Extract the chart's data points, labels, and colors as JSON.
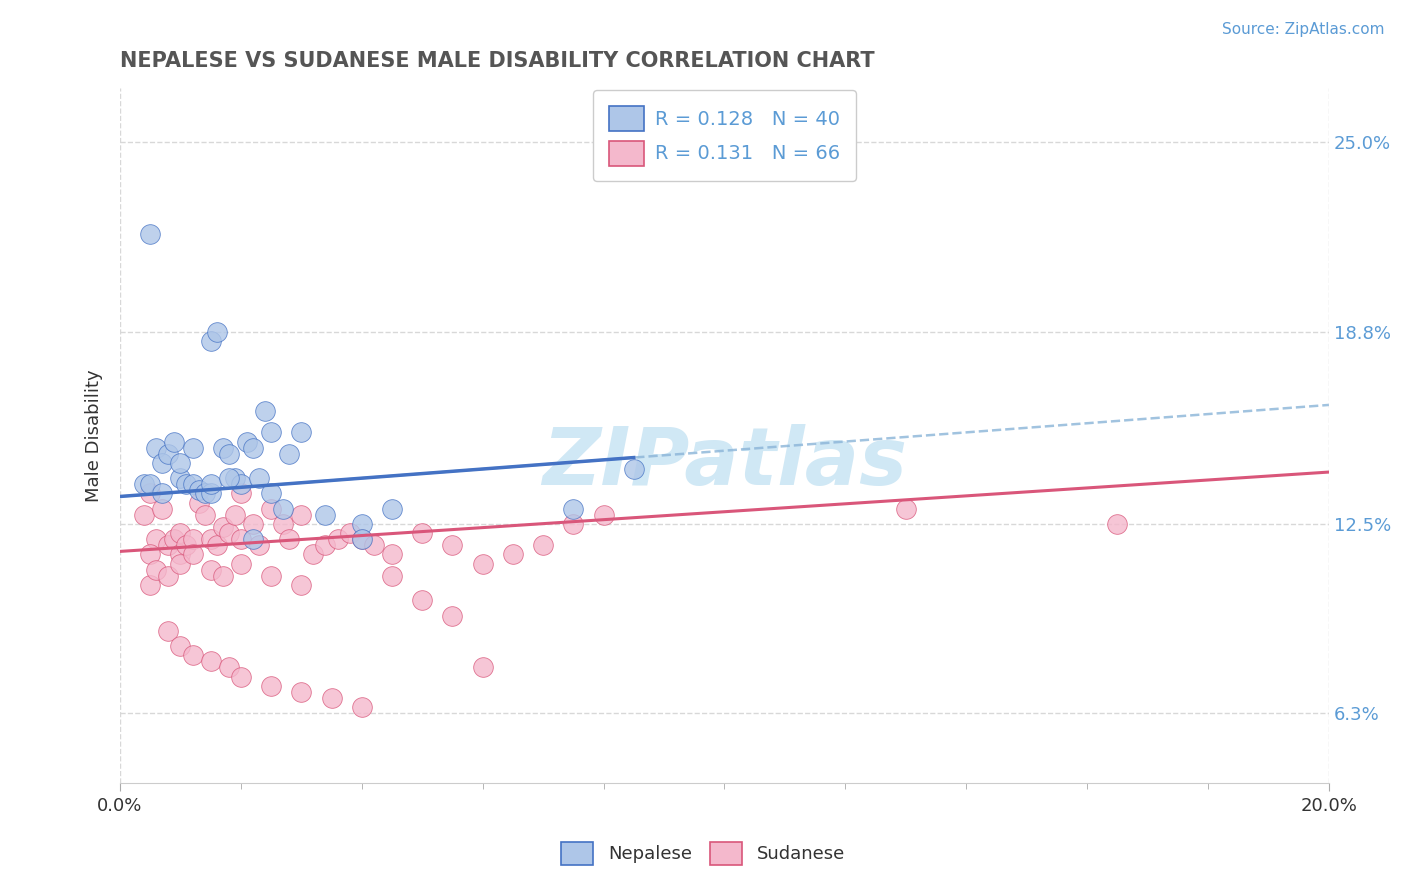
{
  "title": "NEPALESE VS SUDANESE MALE DISABILITY CORRELATION CHART",
  "source_text": "Source: ZipAtlas.com",
  "ylabel": "Male Disability",
  "x_min": 0.0,
  "x_max": 0.2,
  "y_min": 0.04,
  "y_max": 0.268,
  "y_ticks": [
    0.063,
    0.125,
    0.188,
    0.25
  ],
  "y_tick_labels": [
    "6.3%",
    "12.5%",
    "18.8%",
    "25.0%"
  ],
  "x_ticks": [
    0.0,
    0.2
  ],
  "x_tick_labels": [
    "0.0%",
    "20.0%"
  ],
  "legend_label1": "Nepalese",
  "legend_label2": "Sudanese",
  "color_blue_fill": "#aec6e8",
  "color_pink_fill": "#f4b8cc",
  "color_trend_blue": "#4472c4",
  "color_trend_pink": "#d9567a",
  "color_dashed": "#8ab4d8",
  "title_color": "#555555",
  "watermark_color": "#d0e8f5",
  "bg_color": "#ffffff",
  "grid_color": "#d8d8d8",
  "nepalese_x": [
    0.004,
    0.005,
    0.006,
    0.007,
    0.008,
    0.009,
    0.01,
    0.011,
    0.012,
    0.013,
    0.014,
    0.015,
    0.015,
    0.016,
    0.017,
    0.018,
    0.019,
    0.02,
    0.021,
    0.022,
    0.023,
    0.024,
    0.025,
    0.025,
    0.027,
    0.028,
    0.03,
    0.034,
    0.04,
    0.045,
    0.005,
    0.007,
    0.01,
    0.012,
    0.015,
    0.018,
    0.022,
    0.04,
    0.075,
    0.085
  ],
  "nepalese_y": [
    0.138,
    0.22,
    0.15,
    0.145,
    0.148,
    0.152,
    0.14,
    0.138,
    0.138,
    0.136,
    0.135,
    0.135,
    0.185,
    0.188,
    0.15,
    0.148,
    0.14,
    0.138,
    0.152,
    0.15,
    0.14,
    0.162,
    0.155,
    0.135,
    0.13,
    0.148,
    0.155,
    0.128,
    0.125,
    0.13,
    0.138,
    0.135,
    0.145,
    0.15,
    0.138,
    0.14,
    0.12,
    0.12,
    0.13,
    0.143
  ],
  "sudanese_x": [
    0.004,
    0.005,
    0.005,
    0.006,
    0.007,
    0.008,
    0.009,
    0.01,
    0.01,
    0.011,
    0.012,
    0.013,
    0.014,
    0.015,
    0.016,
    0.017,
    0.018,
    0.019,
    0.02,
    0.02,
    0.022,
    0.023,
    0.025,
    0.027,
    0.028,
    0.03,
    0.032,
    0.034,
    0.036,
    0.038,
    0.04,
    0.042,
    0.045,
    0.05,
    0.055,
    0.06,
    0.065,
    0.07,
    0.075,
    0.08,
    0.005,
    0.006,
    0.008,
    0.01,
    0.012,
    0.015,
    0.017,
    0.02,
    0.025,
    0.03,
    0.008,
    0.01,
    0.012,
    0.015,
    0.018,
    0.02,
    0.025,
    0.03,
    0.035,
    0.04,
    0.05,
    0.06,
    0.13,
    0.165,
    0.045,
    0.055
  ],
  "sudanese_y": [
    0.128,
    0.135,
    0.105,
    0.12,
    0.13,
    0.118,
    0.12,
    0.122,
    0.115,
    0.118,
    0.12,
    0.132,
    0.128,
    0.12,
    0.118,
    0.124,
    0.122,
    0.128,
    0.135,
    0.12,
    0.125,
    0.118,
    0.13,
    0.125,
    0.12,
    0.128,
    0.115,
    0.118,
    0.12,
    0.122,
    0.12,
    0.118,
    0.115,
    0.122,
    0.118,
    0.112,
    0.115,
    0.118,
    0.125,
    0.128,
    0.115,
    0.11,
    0.108,
    0.112,
    0.115,
    0.11,
    0.108,
    0.112,
    0.108,
    0.105,
    0.09,
    0.085,
    0.082,
    0.08,
    0.078,
    0.075,
    0.072,
    0.07,
    0.068,
    0.065,
    0.1,
    0.078,
    0.13,
    0.125,
    0.108,
    0.095
  ],
  "nep_trend_x_start": 0.0,
  "nep_trend_x_solid_end": 0.085,
  "nep_trend_x_dashed_end": 0.2,
  "sud_trend_x_start": 0.0,
  "sud_trend_x_end": 0.2
}
